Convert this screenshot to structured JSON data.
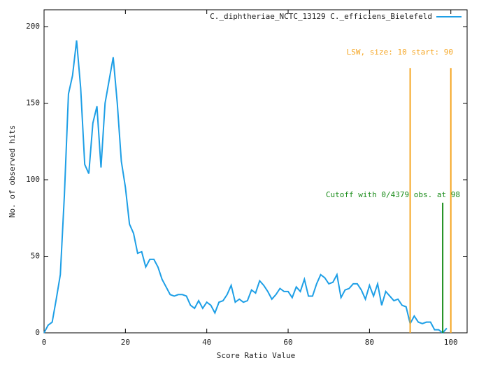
{
  "chart_data": {
    "type": "line",
    "xlabel": "Score Ratio Value",
    "ylabel": "No. of observed hits",
    "x": [
      0,
      1,
      2,
      3,
      4,
      5,
      6,
      7,
      8,
      9,
      10,
      11,
      12,
      13,
      14,
      15,
      16,
      17,
      18,
      19,
      20,
      21,
      22,
      23,
      24,
      25,
      26,
      27,
      28,
      29,
      30,
      31,
      32,
      33,
      34,
      35,
      36,
      37,
      38,
      39,
      40,
      41,
      42,
      43,
      44,
      45,
      46,
      47,
      48,
      49,
      50,
      51,
      52,
      53,
      54,
      55,
      56,
      57,
      58,
      59,
      60,
      61,
      62,
      63,
      64,
      65,
      66,
      67,
      68,
      69,
      70,
      71,
      72,
      73,
      74,
      75,
      76,
      77,
      78,
      79,
      80,
      81,
      82,
      83,
      84,
      85,
      86,
      87,
      88,
      89,
      90,
      91,
      92,
      93,
      94,
      95,
      96,
      97,
      98,
      99
    ],
    "series": [
      {
        "name": "C._diphtheriae_NCTC_13129 C._efficiens_Bielefeld",
        "color": "#1e9fe6",
        "values": [
          0,
          5,
          7,
          22,
          38,
          90,
          156,
          168,
          191,
          160,
          110,
          104,
          137,
          148,
          108,
          150,
          165,
          180,
          150,
          112,
          95,
          71,
          65,
          52,
          53,
          43,
          48,
          48,
          43,
          35,
          30,
          25,
          24,
          25,
          25,
          24,
          18,
          16,
          21,
          16,
          20,
          18,
          13,
          20,
          21,
          25,
          31,
          20,
          22,
          20,
          21,
          28,
          26,
          34,
          31,
          27,
          22,
          25,
          29,
          27,
          27,
          23,
          30,
          27,
          35,
          24,
          24,
          32,
          38,
          36,
          32,
          33,
          38,
          23,
          28,
          29,
          32,
          32,
          28,
          22,
          31,
          24,
          32,
          18,
          27,
          24,
          21,
          22,
          18,
          17,
          6,
          11,
          7,
          6,
          7,
          7,
          2,
          2,
          0,
          3
        ]
      }
    ],
    "markers": [
      {
        "x": 90,
        "height": 173,
        "color": "#f5a623"
      },
      {
        "x": 100,
        "height": 173,
        "color": "#f5a623"
      },
      {
        "x": 98,
        "height": 85,
        "color": "#1a8c1a"
      }
    ],
    "annotations": [
      {
        "text": "LSW, size: 10 start: 90",
        "color": "#f5a623"
      },
      {
        "text": "Cutoff with 0/4379 obs. at 98",
        "color": "#1a8c1a"
      }
    ],
    "xlim": [
      0,
      104
    ],
    "ylim": [
      0,
      211
    ],
    "xticks": [
      0,
      20,
      40,
      60,
      80,
      100
    ],
    "yticks": [
      0,
      50,
      100,
      150,
      200
    ]
  }
}
